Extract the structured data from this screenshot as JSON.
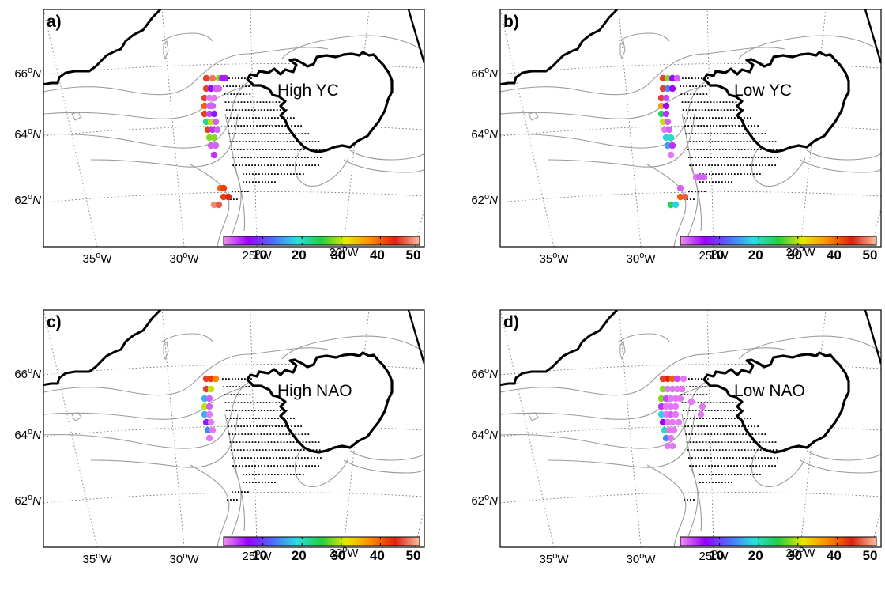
{
  "figure": {
    "panels": [
      {
        "id": "a",
        "letter": "a)",
        "label": "High YC"
      },
      {
        "id": "b",
        "letter": "b)",
        "label": "Low YC"
      },
      {
        "id": "c",
        "letter": "c)",
        "label": "High NAO"
      },
      {
        "id": "d",
        "letter": "d)",
        "label": "Low NAO"
      }
    ],
    "lat_ticks": [
      {
        "deg": "66",
        "hem": "N"
      },
      {
        "deg": "64",
        "hem": "N"
      },
      {
        "deg": "62",
        "hem": "N"
      }
    ],
    "lon_ticks": [
      {
        "deg": "35",
        "hem": "W"
      },
      {
        "deg": "30",
        "hem": "W"
      },
      {
        "deg": "25",
        "hem": "W"
      },
      {
        "deg": "20",
        "hem": "W"
      }
    ],
    "colorbar": {
      "ticks": [
        "10",
        "20",
        "30",
        "40",
        "50"
      ],
      "range": [
        0,
        50
      ],
      "colors": [
        "#f08ff0",
        "#9a00ff",
        "#4f6cff",
        "#28e0e0",
        "#22d040",
        "#e8e800",
        "#ff8c00",
        "#e02010",
        "#f8c0a0"
      ]
    }
  }
}
